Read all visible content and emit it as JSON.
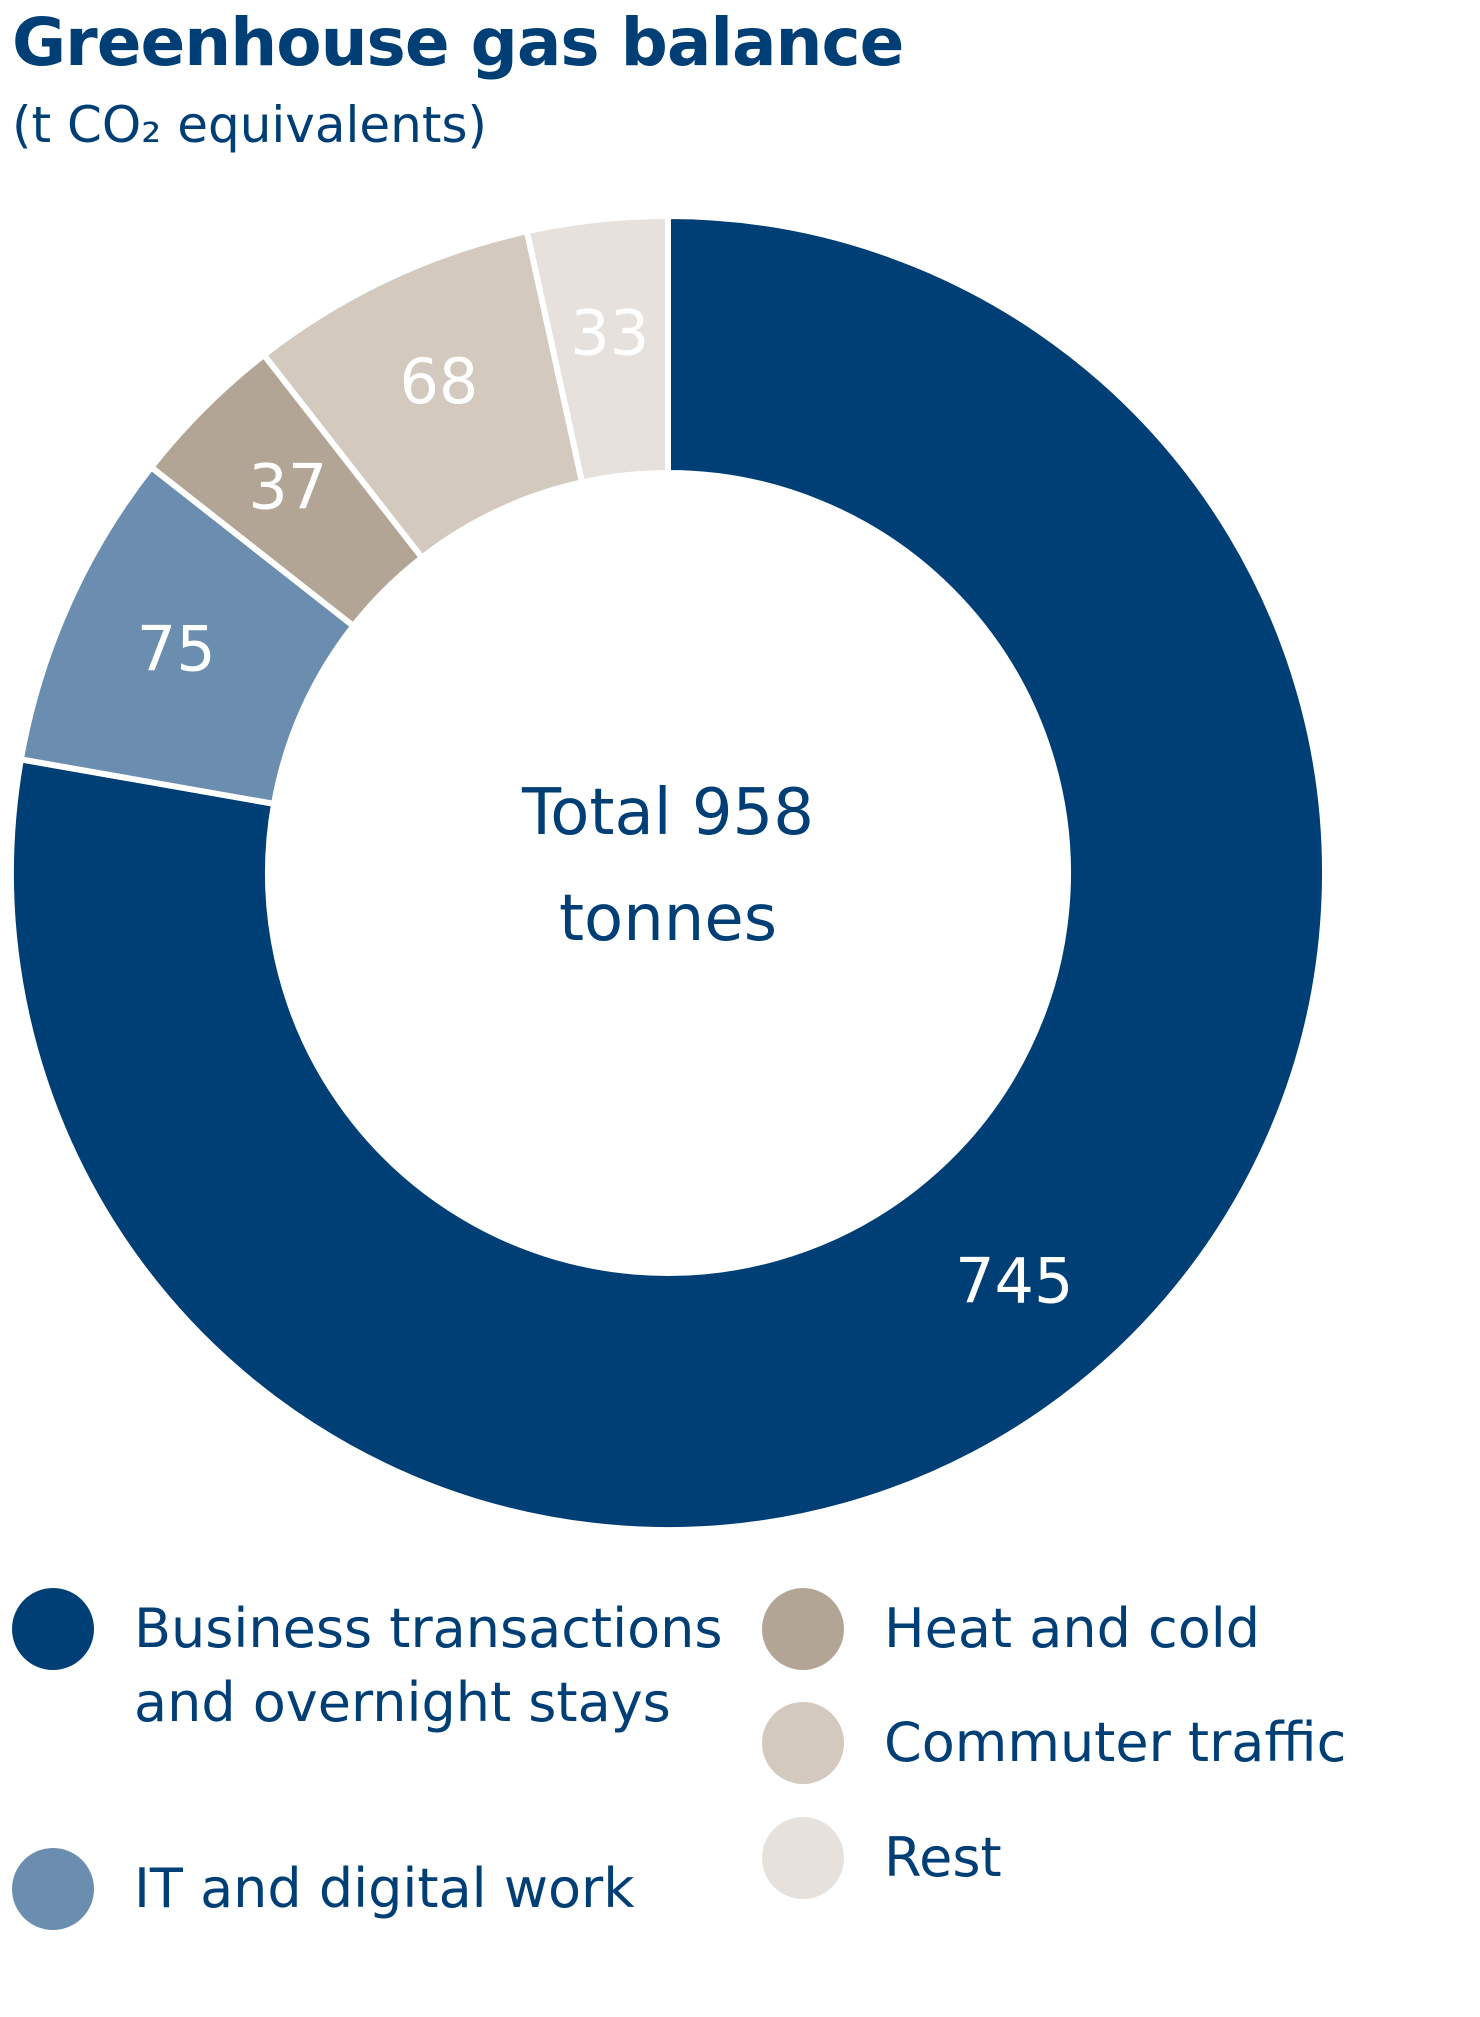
{
  "chart_data": {
    "type": "donut",
    "title": "Greenhouse gas balance",
    "subtitle": "(t CO₂ equivalents)",
    "center_label": "Total 958 tonnes",
    "categories": [
      "Business transactions and overnight stays",
      "IT and digital work",
      "Heat and cold",
      "Commuter traffic",
      "Rest"
    ],
    "values": [
      745,
      75,
      37,
      68,
      33
    ],
    "colors": [
      "#003f76",
      "#6a8db0",
      "#b3a596",
      "#d3c9bf",
      "#e6e1dc"
    ],
    "legend": true
  }
}
